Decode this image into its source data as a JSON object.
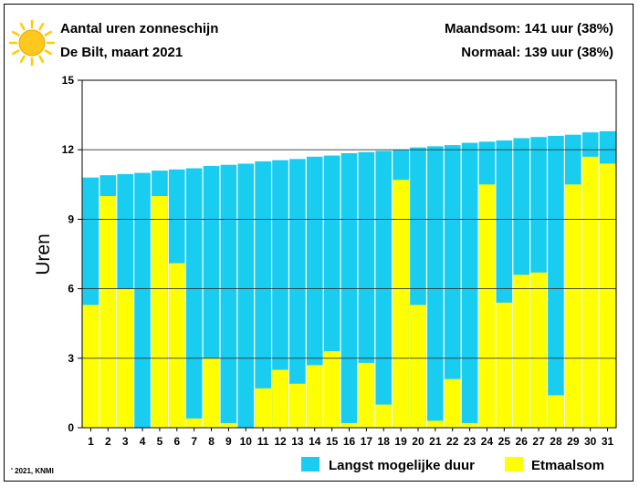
{
  "header": {
    "title": "Aantal uren zonneschijn",
    "subtitle": "De Bilt, maart 2021",
    "month_sum": "Maandsom: 141 uur (38%)",
    "normal": "Normaal: 139 uur (38%)",
    "sun_icon": "sun-icon"
  },
  "copyright": "' 2021, KNMI",
  "colors": {
    "max": "#19cdf0",
    "actual": "#ffff00",
    "sun": "#ffc81e",
    "sun_rays": "#ffcd00"
  },
  "chart_data": {
    "type": "bar",
    "categories": [
      "1",
      "2",
      "3",
      "4",
      "5",
      "6",
      "7",
      "8",
      "9",
      "10",
      "11",
      "12",
      "13",
      "14",
      "15",
      "16",
      "17",
      "18",
      "19",
      "20",
      "21",
      "22",
      "23",
      "24",
      "25",
      "26",
      "27",
      "28",
      "29",
      "30",
      "31"
    ],
    "series": [
      {
        "name": "Langst mogelijke duur",
        "values": [
          10.8,
          10.9,
          10.95,
          11.0,
          11.1,
          11.15,
          11.2,
          11.3,
          11.35,
          11.4,
          11.5,
          11.55,
          11.6,
          11.7,
          11.75,
          11.85,
          11.9,
          11.95,
          12.0,
          12.1,
          12.15,
          12.2,
          12.3,
          12.35,
          12.4,
          12.5,
          12.55,
          12.6,
          12.65,
          12.75,
          12.8
        ]
      },
      {
        "name": "Etmaalsom",
        "values": [
          5.3,
          10.0,
          6.0,
          0.0,
          10.0,
          7.1,
          0.4,
          3.0,
          0.2,
          0.0,
          1.7,
          2.5,
          1.9,
          2.7,
          3.3,
          0.2,
          2.8,
          1.0,
          10.7,
          5.3,
          0.3,
          2.1,
          0.2,
          10.5,
          5.4,
          6.6,
          6.7,
          1.4,
          10.5,
          11.7,
          11.4
        ]
      }
    ],
    "ylabel": "Uren",
    "ylim": [
      0,
      15
    ],
    "yticks": [
      "0",
      "3",
      "6",
      "9",
      "12",
      "15"
    ],
    "grid": true,
    "legend": "bottom-right"
  }
}
